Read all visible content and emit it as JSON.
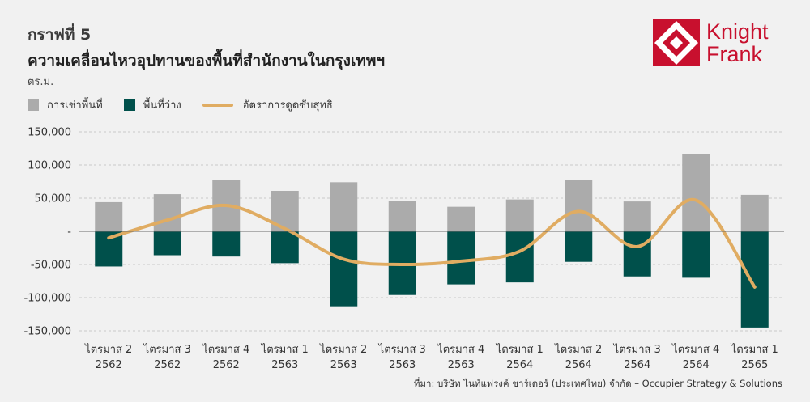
{
  "header": {
    "figure_label": "กราฟที่ 5",
    "title": "ความเคลื่อนไหวอุปทานของพื้นที่สำนักงานในกรุงเทพฯ",
    "unit": "ตร.ม."
  },
  "logo": {
    "line1": "Knight",
    "line2": "Frank",
    "color": "#c8102e"
  },
  "source": "ที่มา: บริษัท ไนท์แฟรงค์ ชาร์เตอร์ (ประเทศไทย) จำกัด – Occupier Strategy & Solutions",
  "colors": {
    "leased": "#ababab",
    "vacant": "#00504b",
    "net_absorption": "#e0ac62"
  },
  "chart_data": {
    "type": "bar",
    "categories": [
      [
        "ไตรมาส 2",
        "2562"
      ],
      [
        "ไตรมาส 3",
        "2562"
      ],
      [
        "ไตรมาส 4",
        "2562"
      ],
      [
        "ไตรมาส 1",
        "2563"
      ],
      [
        "ไตรมาส 2",
        "2563"
      ],
      [
        "ไตรมาส 3",
        "2563"
      ],
      [
        "ไตรมาส 4",
        "2563"
      ],
      [
        "ไตรมาส 1",
        "2564"
      ],
      [
        "ไตรมาส 2",
        "2564"
      ],
      [
        "ไตรมาส 3",
        "2564"
      ],
      [
        "ไตรมาส 4",
        "2564"
      ],
      [
        "ไตรมาส 1",
        "2565"
      ]
    ],
    "series": [
      {
        "name": "การเช่าพื้นที่",
        "kind": "bar",
        "values": [
          44000,
          56000,
          78000,
          61000,
          74000,
          46000,
          37000,
          48000,
          77000,
          45000,
          116000,
          55000
        ]
      },
      {
        "name": "พื้นที่ว่าง",
        "kind": "bar",
        "values": [
          -53000,
          -36000,
          -38000,
          -48000,
          -113000,
          -96000,
          -80000,
          -77000,
          -46000,
          -68000,
          -70000,
          -145000
        ]
      },
      {
        "name": "อัตราการดูดซับสุทธิ",
        "kind": "line",
        "values": [
          -10000,
          17000,
          39000,
          4000,
          -42000,
          -50000,
          -45000,
          -30000,
          30000,
          -23000,
          47000,
          -84000
        ]
      }
    ],
    "yticks": [
      "150,000",
      "100,000",
      "50,000",
      "-",
      "-50,000",
      "-100,000",
      "-150,000"
    ],
    "ytick_values": [
      150000,
      100000,
      50000,
      0,
      -50000,
      -100000,
      -150000
    ],
    "ylim": [
      -150000,
      150000
    ],
    "grid": true,
    "legend_position": "top-left"
  }
}
